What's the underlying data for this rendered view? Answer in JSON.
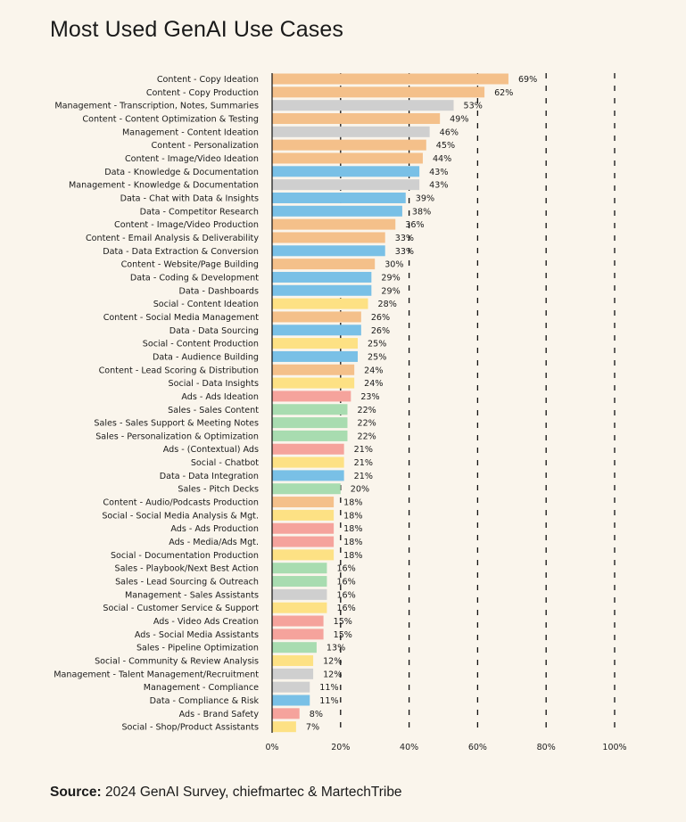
{
  "colors": {
    "Content": "#f4c08a",
    "Management": "#cfcfcf",
    "Data": "#79c0e6",
    "Social": "#fde184",
    "Ads": "#f5a39c",
    "Sales": "#a8dcb0"
  },
  "chart_data": {
    "type": "bar",
    "orientation": "horizontal",
    "title": "Most Used GenAI Use Cases",
    "xlim": [
      0,
      100
    ],
    "ticks": [
      0,
      20,
      40,
      60,
      80,
      100
    ],
    "tick_labels": [
      "0%",
      "20%",
      "40%",
      "60%",
      "80%",
      "100%"
    ],
    "grid": "dashed vertical lines",
    "categories": [
      "Content - Copy Ideation",
      "Content - Copy Production",
      "Management - Transcription, Notes, Summaries",
      "Content - Content Optimization & Testing",
      "Management - Content Ideation",
      "Content - Personalization",
      "Content - Image/Video Ideation",
      "Data - Knowledge & Documentation",
      "Management - Knowledge & Documentation",
      "Data - Chat with Data & Insights",
      "Data - Competitor Research",
      "Content - Image/Video Production",
      "Content - Email Analysis & Deliverability",
      "Data - Data Extraction & Conversion",
      "Content - Website/Page Building",
      "Data - Coding & Development",
      "Data - Dashboards",
      "Social - Content Ideation",
      "Content - Social Media Management",
      "Data - Data Sourcing",
      "Social - Content Production",
      "Data - Audience Building",
      "Content - Lead Scoring & Distribution",
      "Social - Data Insights",
      "Ads - Ads Ideation",
      "Sales - Sales Content",
      "Sales - Sales Support & Meeting Notes",
      "Sales - Personalization & Optimization",
      "Ads - (Contextual) Ads",
      "Social - Chatbot",
      "Data - Data Integration",
      "Sales - Pitch Decks",
      "Content - Audio/Podcasts Production",
      "Social - Social Media Analysis & Mgt.",
      "Ads - Ads Production",
      "Ads - Media/Ads Mgt.",
      "Social - Documentation Production",
      "Sales - Playbook/Next Best Action",
      "Sales - Lead Sourcing & Outreach",
      "Management - Sales Assistants",
      "Social - Customer Service & Support",
      "Ads - Video Ads Creation",
      "Ads - Social Media Assistants",
      "Sales - Pipeline Optimization",
      "Social - Community & Review Analysis",
      "Management - Talent Management/Recruitment",
      "Management - Compliance",
      "Data - Compliance & Risk",
      "Ads - Brand Safety",
      "Social - Shop/Product Assistants"
    ],
    "groups": [
      "Content",
      "Content",
      "Management",
      "Content",
      "Management",
      "Content",
      "Content",
      "Data",
      "Management",
      "Data",
      "Data",
      "Content",
      "Content",
      "Data",
      "Content",
      "Data",
      "Data",
      "Social",
      "Content",
      "Data",
      "Social",
      "Data",
      "Content",
      "Social",
      "Ads",
      "Sales",
      "Sales",
      "Sales",
      "Ads",
      "Social",
      "Data",
      "Sales",
      "Content",
      "Social",
      "Ads",
      "Ads",
      "Social",
      "Sales",
      "Sales",
      "Management",
      "Social",
      "Ads",
      "Ads",
      "Sales",
      "Social",
      "Management",
      "Management",
      "Data",
      "Ads",
      "Social"
    ],
    "values": [
      69,
      62,
      53,
      49,
      46,
      45,
      44,
      43,
      43,
      39,
      38,
      36,
      33,
      33,
      30,
      29,
      29,
      28,
      26,
      26,
      25,
      25,
      24,
      24,
      23,
      22,
      22,
      22,
      21,
      21,
      21,
      20,
      18,
      18,
      18,
      18,
      18,
      16,
      16,
      16,
      16,
      15,
      15,
      13,
      12,
      12,
      11,
      11,
      8,
      7
    ],
    "value_labels": [
      "69%",
      "62%",
      "53%",
      "49%",
      "46%",
      "45%",
      "44%",
      "43%",
      "43%",
      "39%",
      "38%",
      "36%",
      "33%",
      "33%",
      "30%",
      "29%",
      "29%",
      "28%",
      "26%",
      "26%",
      "25%",
      "25%",
      "24%",
      "24%",
      "23%",
      "22%",
      "22%",
      "22%",
      "21%",
      "21%",
      "21%",
      "20%",
      "18%",
      "18%",
      "18%",
      "18%",
      "18%",
      "16%",
      "16%",
      "16%",
      "16%",
      "15%",
      "15%",
      "13%",
      "12%",
      "12%",
      "11%",
      "11%",
      "8%",
      "7%"
    ]
  },
  "footer": {
    "source_label": "Source:",
    "source_text": " 2024 GenAI Survey, chiefmartec & MartechTribe"
  }
}
